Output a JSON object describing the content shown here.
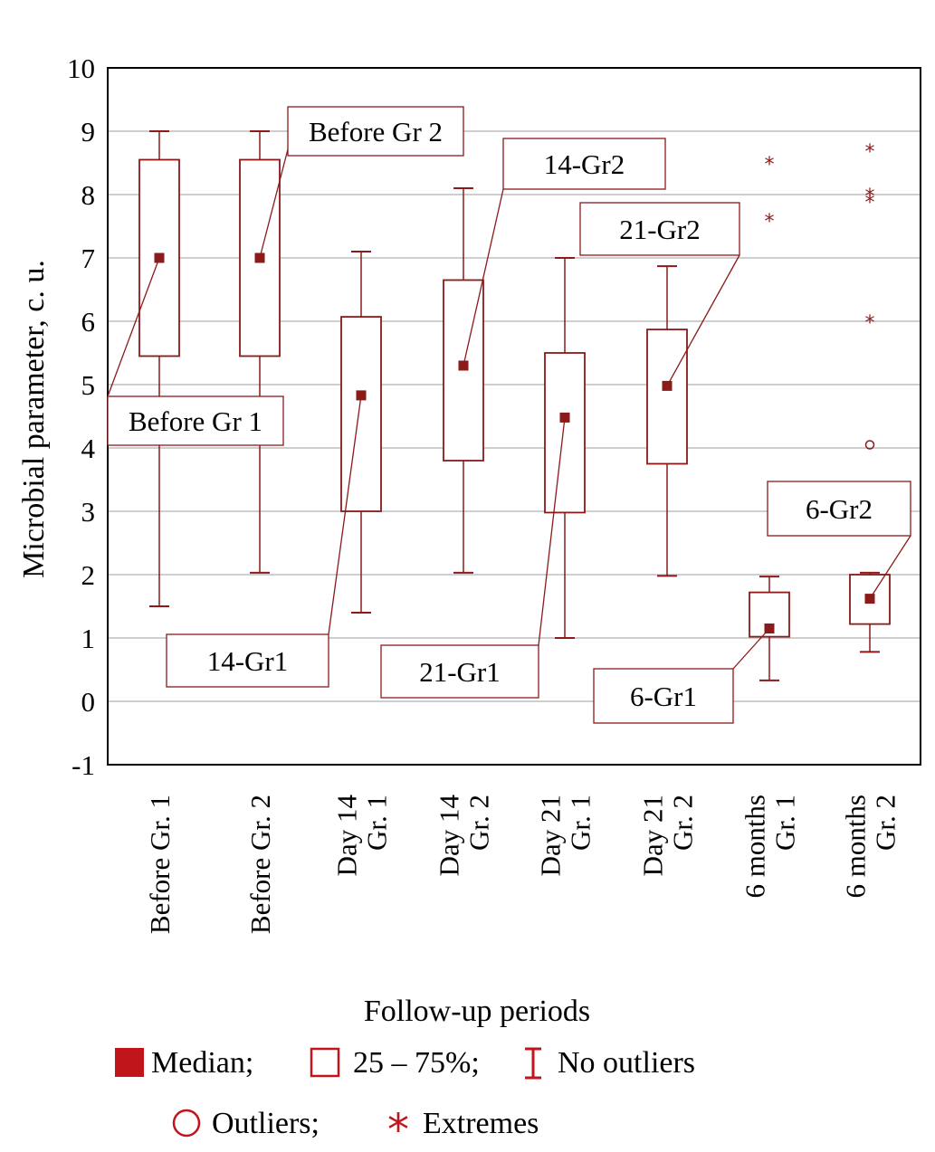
{
  "chart_data": {
    "type": "boxplot",
    "xlabel": "Follow-up periods",
    "ylabel": "Microbial parameter, c. u.",
    "ylim": [
      -1,
      10
    ],
    "yticks": [
      -1,
      0,
      1,
      2,
      3,
      4,
      5,
      6,
      7,
      8,
      9,
      10
    ],
    "grid": true,
    "categories": [
      [
        "Before Gr. 1"
      ],
      [
        "Before Gr. 2"
      ],
      [
        "Day 14",
        "Gr. 1"
      ],
      [
        "Day 14",
        "Gr. 2"
      ],
      [
        "Day 21",
        "Gr. 1"
      ],
      [
        "Day 21",
        "Gr. 2"
      ],
      [
        "6 months",
        "Gr. 1"
      ],
      [
        "6 months",
        "Gr. 2"
      ]
    ],
    "boxes": [
      {
        "median": 7.0,
        "q1": 5.45,
        "q3": 8.55,
        "whisker_low": 1.5,
        "whisker_high": 9.0,
        "outliers": [],
        "extremes": []
      },
      {
        "median": 7.0,
        "q1": 5.45,
        "q3": 8.55,
        "whisker_low": 2.03,
        "whisker_high": 9.0,
        "outliers": [],
        "extremes": []
      },
      {
        "median": 4.83,
        "q1": 3.0,
        "q3": 6.07,
        "whisker_low": 1.4,
        "whisker_high": 7.1,
        "outliers": [],
        "extremes": []
      },
      {
        "median": 5.3,
        "q1": 3.8,
        "q3": 6.65,
        "whisker_low": 2.03,
        "whisker_high": 8.1,
        "outliers": [],
        "extremes": []
      },
      {
        "median": 4.48,
        "q1": 2.98,
        "q3": 5.5,
        "whisker_low": 1.0,
        "whisker_high": 7.0,
        "outliers": [],
        "extremes": []
      },
      {
        "median": 4.98,
        "q1": 3.75,
        "q3": 5.87,
        "whisker_low": 1.98,
        "whisker_high": 6.87,
        "outliers": [],
        "extremes": []
      },
      {
        "median": 1.15,
        "q1": 1.02,
        "q3": 1.72,
        "whisker_low": 0.33,
        "whisker_high": 1.97,
        "outliers": [],
        "extremes": [
          8.5,
          7.6
        ]
      },
      {
        "median": 1.62,
        "q1": 1.22,
        "q3": 2.0,
        "whisker_low": 0.78,
        "whisker_high": 2.03,
        "outliers": [
          4.05
        ],
        "extremes": [
          8.7,
          8.0,
          7.9,
          6.0
        ]
      }
    ],
    "annotations": [
      {
        "text": "Before Gr 1",
        "box": 0
      },
      {
        "text": "Before Gr 2",
        "box": 1
      },
      {
        "text": "14-Gr1",
        "box": 2
      },
      {
        "text": "14-Gr2",
        "box": 3
      },
      {
        "text": "21-Gr1",
        "box": 4
      },
      {
        "text": "21-Gr2",
        "box": 5
      },
      {
        "text": "6-Gr1",
        "box": 6
      },
      {
        "text": "6-Gr2",
        "box": 7
      }
    ],
    "legend": {
      "median": "Median;",
      "box": "25 – 75%;",
      "whisker": "No outliers",
      "outliers": "Outliers;",
      "extremes": "Extremes"
    },
    "colors": {
      "mark": "#8b1a1a",
      "legend_mark": "#c0151b",
      "grid": "#bdbdbd",
      "frame": "#000000"
    }
  }
}
